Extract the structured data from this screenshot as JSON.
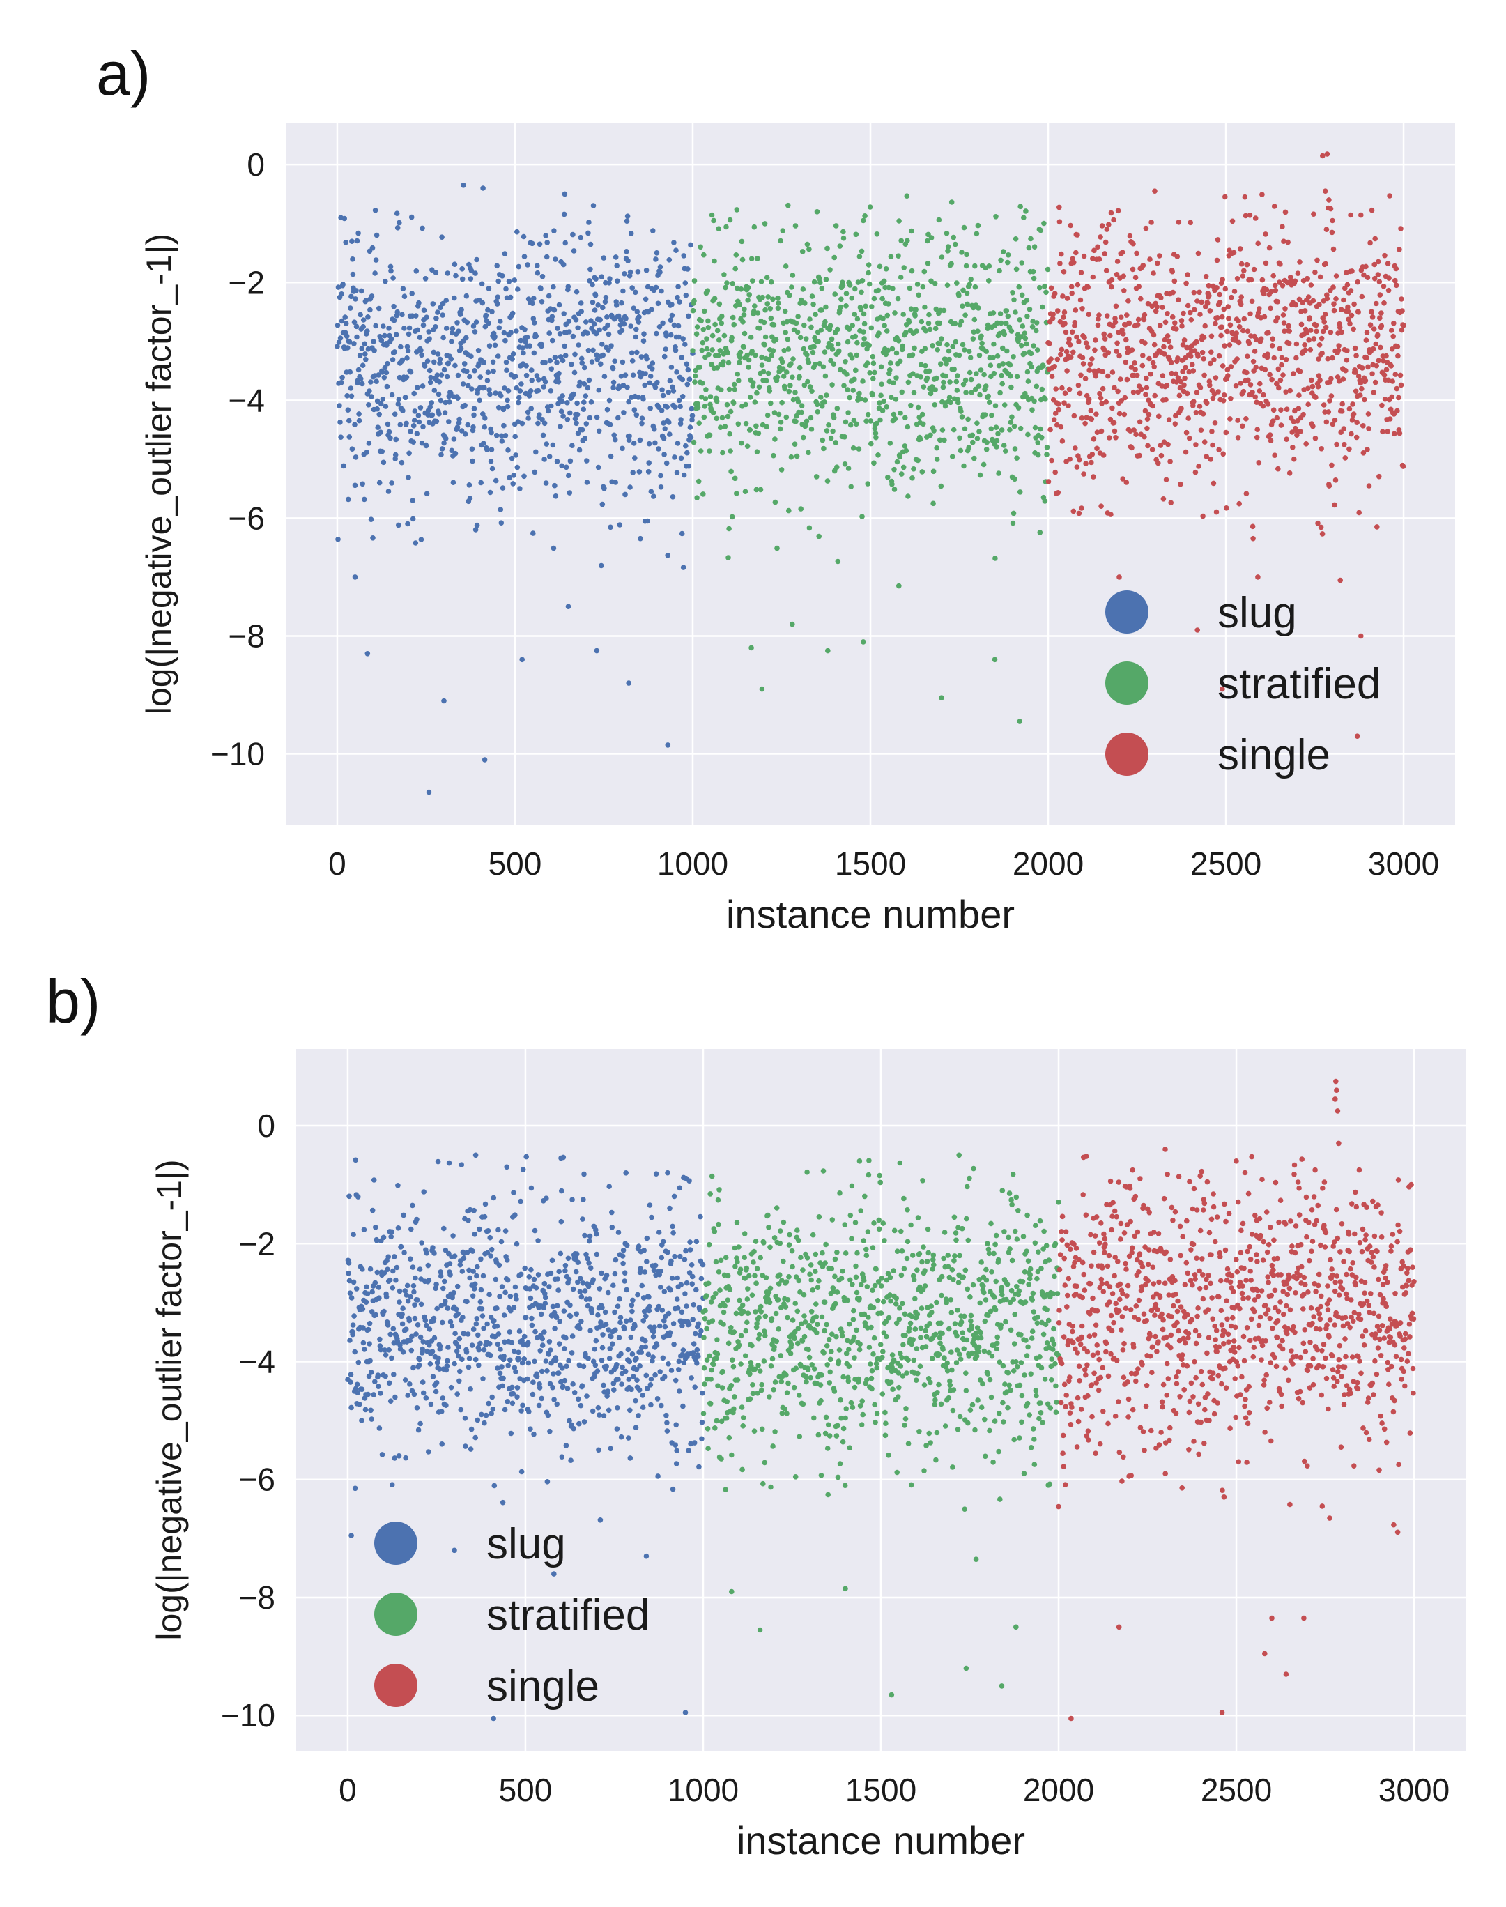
{
  "chart_data": [
    {
      "panel_label": "a)",
      "type": "scatter",
      "xlabel": "instance number",
      "ylabel": "log(|negative_outlier factor_-1|)",
      "xlim": [
        -145,
        3145
      ],
      "ylim": [
        -11.2,
        0.7
      ],
      "xticks": [
        0,
        500,
        1000,
        1500,
        2000,
        2500,
        3000
      ],
      "yticks": [
        0,
        -2,
        -4,
        -6,
        -8,
        -10
      ],
      "grid": true,
      "legend_position": "lower right",
      "series": [
        {
          "name": "slug",
          "color": "#4c72b0",
          "x_range": [
            0,
            1000
          ],
          "y_center": -3.45,
          "y_spread": 1.15,
          "outliers": [
            [
              85,
              -8.3
            ],
            [
              300,
              -9.1
            ],
            [
              415,
              -10.1
            ],
            [
              258,
              -10.65
            ],
            [
              520,
              -8.4
            ],
            [
              930,
              -9.85
            ],
            [
              820,
              -8.8
            ],
            [
              355,
              -0.35
            ],
            [
              640,
              -0.5
            ],
            [
              410,
              -0.4
            ],
            [
              10,
              -0.9
            ],
            [
              730,
              -8.25
            ],
            [
              50,
              -7.0
            ],
            [
              650,
              -7.5
            ]
          ]
        },
        {
          "name": "stratified",
          "color": "#55a868",
          "x_range": [
            1000,
            2000
          ],
          "y_center": -3.3,
          "y_spread": 1.15,
          "outliers": [
            [
              1165,
              -8.2
            ],
            [
              1195,
              -8.9
            ],
            [
              1280,
              -7.8
            ],
            [
              1380,
              -8.25
            ],
            [
              1480,
              -8.1
            ],
            [
              1700,
              -9.05
            ],
            [
              1850,
              -8.4
            ],
            [
              1920,
              -9.45
            ],
            [
              1580,
              -7.15
            ],
            [
              1350,
              -0.8
            ],
            [
              1480,
              -0.95
            ]
          ]
        },
        {
          "name": "single",
          "color": "#c44e52",
          "x_range": [
            2000,
            3000
          ],
          "y_center": -3.2,
          "y_spread": 1.15,
          "outliers": [
            [
              2785,
              0.18
            ],
            [
              2772,
              0.15
            ],
            [
              2780,
              -0.45
            ],
            [
              2790,
              -0.6
            ],
            [
              2795,
              -0.75
            ],
            [
              2800,
              -0.95
            ],
            [
              2783,
              -1.1
            ],
            [
              2200,
              -7.0
            ],
            [
              2420,
              -7.9
            ],
            [
              2490,
              -8.9
            ],
            [
              2880,
              -8.0
            ],
            [
              2870,
              -9.7
            ],
            [
              2590,
              -7.0
            ],
            [
              2300,
              -0.45
            ]
          ]
        }
      ]
    },
    {
      "panel_label": "b)",
      "type": "scatter",
      "xlabel": "instance number",
      "ylabel": "log(|negative_outlier factor_-1|)",
      "xlim": [
        -145,
        3145
      ],
      "ylim": [
        -10.6,
        1.3
      ],
      "xticks": [
        0,
        500,
        1000,
        1500,
        2000,
        2500,
        3000
      ],
      "yticks": [
        0,
        -2,
        -4,
        -6,
        -8,
        -10
      ],
      "grid": true,
      "legend_position": "lower left",
      "series": [
        {
          "name": "slug",
          "color": "#4c72b0",
          "x_range": [
            0,
            1000
          ],
          "y_center": -3.4,
          "y_spread": 1.05,
          "outliers": [
            [
              410,
              -10.05
            ],
            [
              950,
              -9.95
            ],
            [
              580,
              -7.6
            ],
            [
              300,
              -7.2
            ],
            [
              840,
              -7.3
            ],
            [
              10,
              -6.95
            ],
            [
              360,
              -0.5
            ],
            [
              600,
              -0.55
            ],
            [
              900,
              -0.8
            ]
          ]
        },
        {
          "name": "stratified",
          "color": "#55a868",
          "x_range": [
            1000,
            2000
          ],
          "y_center": -3.45,
          "y_spread": 1.1,
          "outliers": [
            [
              1530,
              -9.65
            ],
            [
              1840,
              -9.5
            ],
            [
              1880,
              -8.5
            ],
            [
              1160,
              -8.55
            ],
            [
              1400,
              -7.85
            ],
            [
              1740,
              -9.2
            ],
            [
              1080,
              -7.9
            ],
            [
              1720,
              -0.5
            ],
            [
              1440,
              -0.6
            ]
          ]
        },
        {
          "name": "single",
          "color": "#c44e52",
          "x_range": [
            2000,
            3000
          ],
          "y_center": -3.2,
          "y_spread": 1.2,
          "outliers": [
            [
              2035,
              -10.05
            ],
            [
              2460,
              -9.95
            ],
            [
              2640,
              -9.3
            ],
            [
              2580,
              -8.95
            ],
            [
              2600,
              -8.35
            ],
            [
              2170,
              -8.5
            ],
            [
              2690,
              -8.35
            ],
            [
              2780,
              0.75
            ],
            [
              2782,
              0.6
            ],
            [
              2778,
              0.45
            ],
            [
              2785,
              0.25
            ],
            [
              2788,
              -0.3
            ],
            [
              2300,
              -0.4
            ],
            [
              2500,
              -0.6
            ]
          ]
        }
      ]
    }
  ]
}
